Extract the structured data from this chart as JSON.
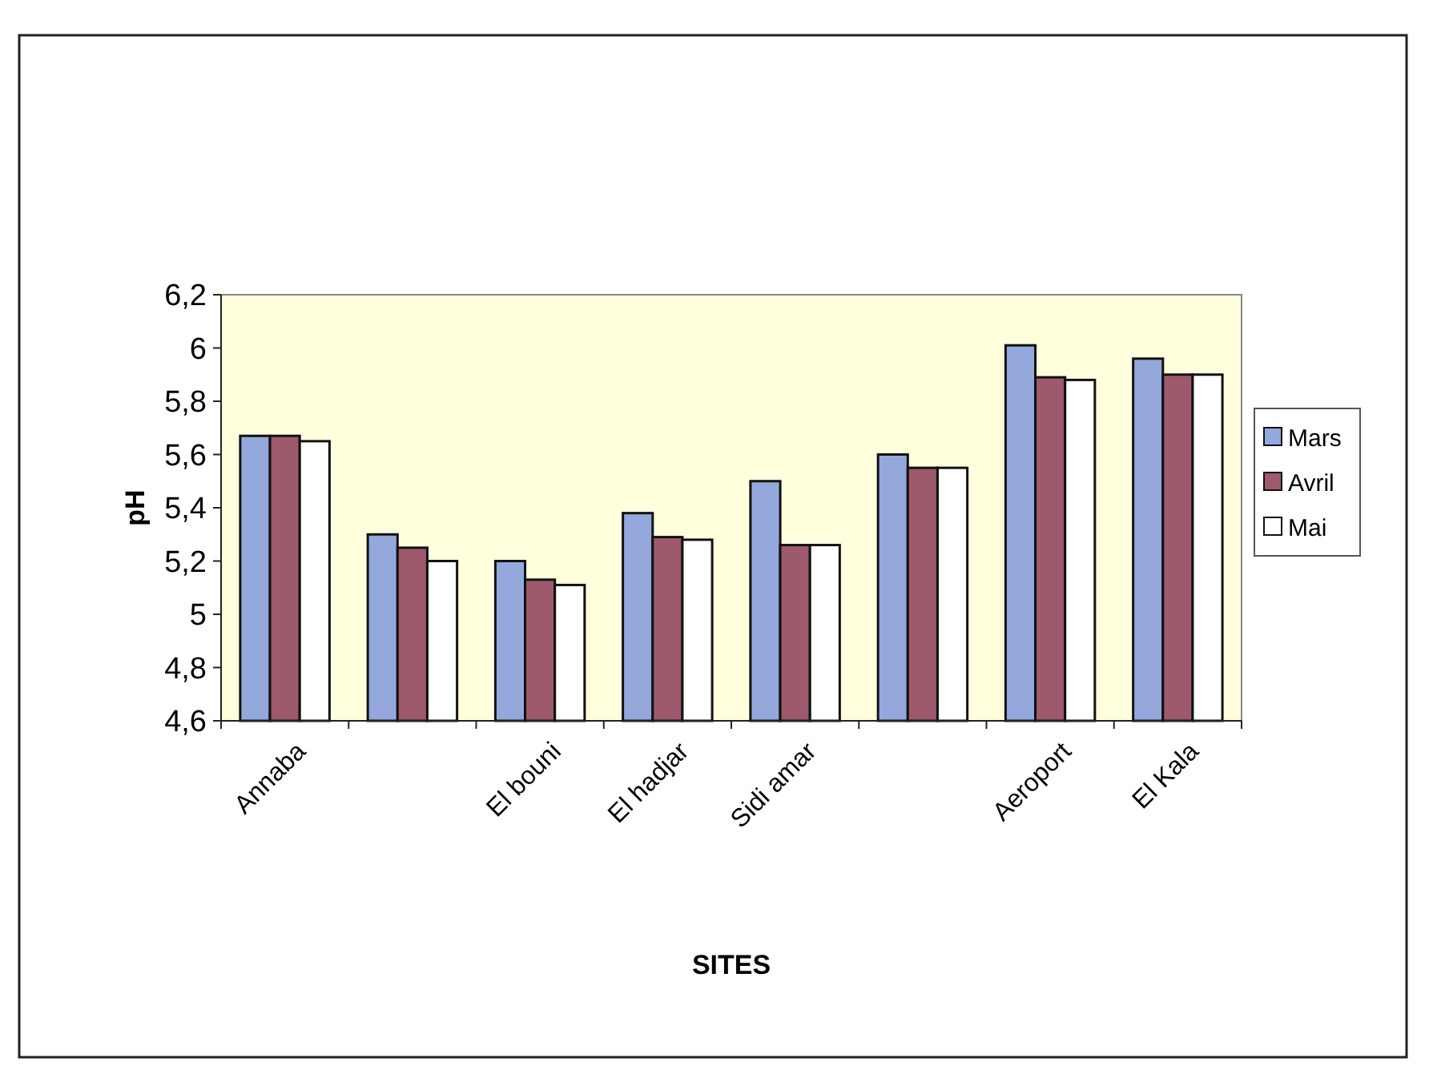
{
  "chart_data": {
    "type": "bar",
    "xlabel": "SITES",
    "ylabel": "pH",
    "categories": [
      "Annaba",
      null,
      "El bouni",
      "El hadjar",
      "Sidi amar",
      null,
      "Aeroport",
      "El Kala"
    ],
    "series": [
      {
        "name": "Mars",
        "color": "#94a8dc",
        "values": [
          5.67,
          5.3,
          5.2,
          5.38,
          5.5,
          5.6,
          6.01,
          5.96
        ]
      },
      {
        "name": "Avril",
        "color": "#9c5a6c",
        "values": [
          5.67,
          5.25,
          5.13,
          5.29,
          5.26,
          5.55,
          5.89,
          5.9
        ]
      },
      {
        "name": "Mai",
        "color": "#ffffff",
        "values": [
          5.65,
          5.2,
          5.11,
          5.28,
          5.26,
          5.55,
          5.88,
          5.9
        ]
      }
    ],
    "ylim": [
      4.6,
      6.2
    ],
    "yticks": [
      {
        "value": 4.6,
        "label": "4,6"
      },
      {
        "value": 4.8,
        "label": "4,8"
      },
      5,
      {
        "value": 5.2,
        "label": "5,2"
      },
      {
        "value": 5.4,
        "label": "5,4"
      },
      {
        "value": 5.6,
        "label": "5,6"
      },
      {
        "value": 5.8,
        "label": "5,8"
      },
      6,
      {
        "value": 6.2,
        "label": "6,2"
      }
    ],
    "legend": "right"
  }
}
